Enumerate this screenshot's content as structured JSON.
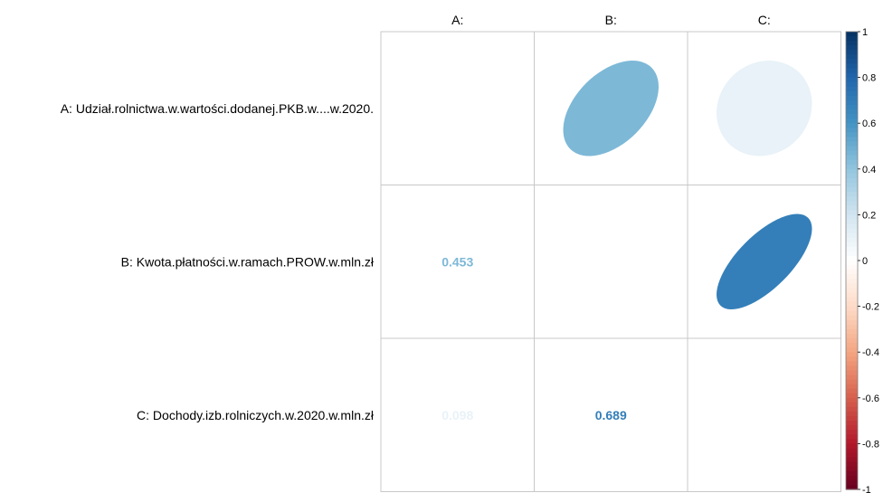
{
  "chart_data": {
    "type": "heatmap",
    "variables": [
      {
        "code": "A:",
        "label": "A: Udział.rolnictwa.w.wartości.dodanej.PKB.w....w.2020."
      },
      {
        "code": "B:",
        "label": "B: Kwota.płatności.w.ramach.PROW.w.mln.zł"
      },
      {
        "code": "C:",
        "label": "C: Dochody.izb.rolniczych.w.2020.w.mln.zł"
      }
    ],
    "matrix": [
      [
        1,
        0.453,
        0.098
      ],
      [
        0.453,
        1,
        0.689
      ],
      [
        0.098,
        0.689,
        1
      ]
    ],
    "upper_method": "ellipse",
    "lower_method": "number",
    "lower_labels": [
      {
        "row": 1,
        "col": 0,
        "text": "0.453",
        "value": 0.453
      },
      {
        "row": 2,
        "col": 0,
        "text": "0.098",
        "value": 0.098
      },
      {
        "row": 2,
        "col": 1,
        "text": "0.689",
        "value": 0.689
      }
    ],
    "diagonal": "blank",
    "colorbar": {
      "range": [
        -1,
        1
      ],
      "ticks": [
        "1",
        "0.8",
        "0.6",
        "0.4",
        "0.2",
        "0",
        "-0.2",
        "-0.4",
        "-0.6",
        "-0.8",
        "-1"
      ],
      "tick_values": [
        1,
        0.8,
        0.6,
        0.4,
        0.2,
        0,
        -0.2,
        -0.4,
        -0.6,
        -0.8,
        -1
      ],
      "palette": [
        "#67001F",
        "#B2182B",
        "#D6604D",
        "#F4A582",
        "#FDDBC7",
        "#FFFFFF",
        "#D1E5F0",
        "#92C5DE",
        "#4393C3",
        "#2166AC",
        "#053061"
      ]
    },
    "grid": true,
    "legend_position": "right"
  }
}
